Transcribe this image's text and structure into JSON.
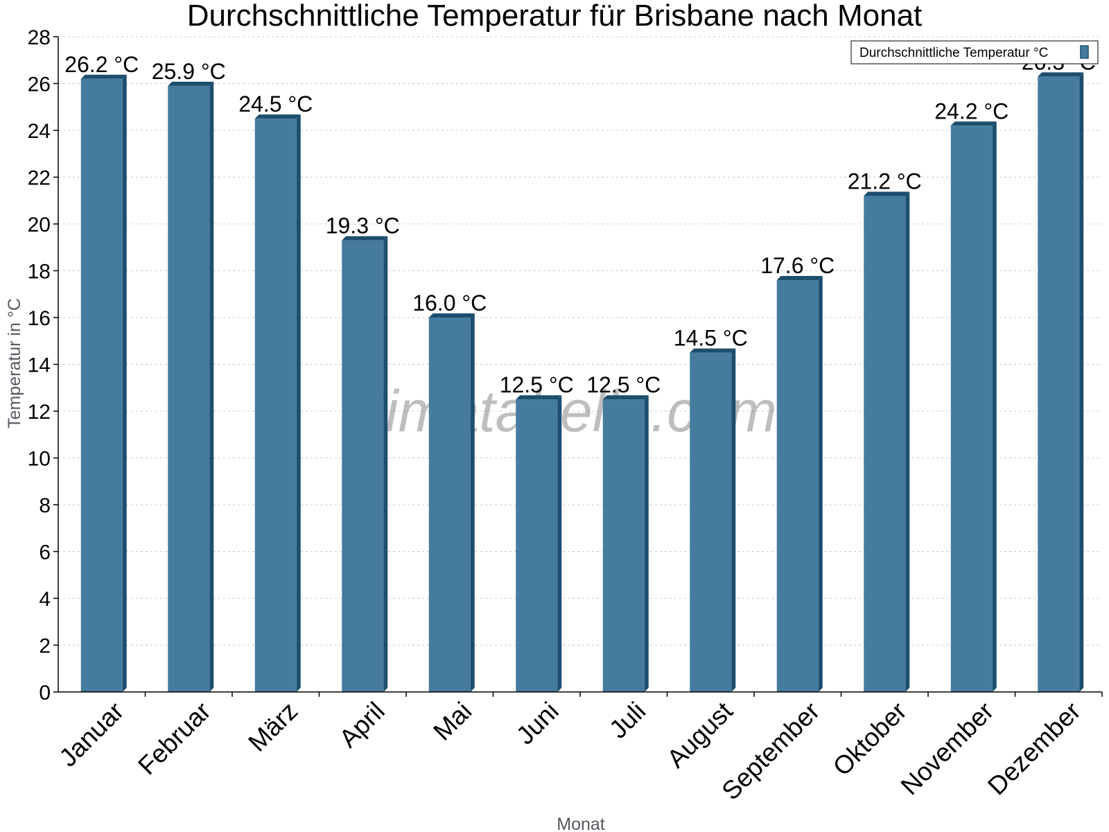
{
  "colors": {
    "bar": "#457b9d",
    "bar_side": "#1d4e6e",
    "bar_top": "#1d4e6e",
    "grid": "#c8c8c8",
    "axis": "#000000"
  },
  "watermark": "klimatabelle.com",
  "chart_data": {
    "type": "bar",
    "title": "Durchschnittliche Temperatur für Brisbane nach Monat",
    "xlabel": "Monat",
    "ylabel": "Temperatur in °C",
    "ylim": [
      0,
      28
    ],
    "yticks": [
      "0",
      "2",
      "4",
      "6",
      "8",
      "10",
      "12",
      "14",
      "16",
      "18",
      "20",
      "22",
      "24",
      "26",
      "28"
    ],
    "grid": true,
    "legend_position": "top-right",
    "categories": [
      "Januar",
      "Februar",
      "März",
      "April",
      "Mai",
      "Juni",
      "Juli",
      "August",
      "September",
      "Oktober",
      "November",
      "Dezember"
    ],
    "series": [
      {
        "name": "Durchschnittliche Temperatur °C",
        "values": [
          26.2,
          25.9,
          24.5,
          19.3,
          16.0,
          12.5,
          12.5,
          14.5,
          17.6,
          21.2,
          24.2,
          26.3
        ],
        "labels": [
          "26.2 °C",
          "25.9 °C",
          "24.5 °C",
          "19.3 °C",
          "16.0 °C",
          "12.5 °C",
          "12.5 °C",
          "14.5 °C",
          "17.6 °C",
          "21.2 °C",
          "24.2 °C",
          "26.3 °C"
        ]
      }
    ]
  }
}
